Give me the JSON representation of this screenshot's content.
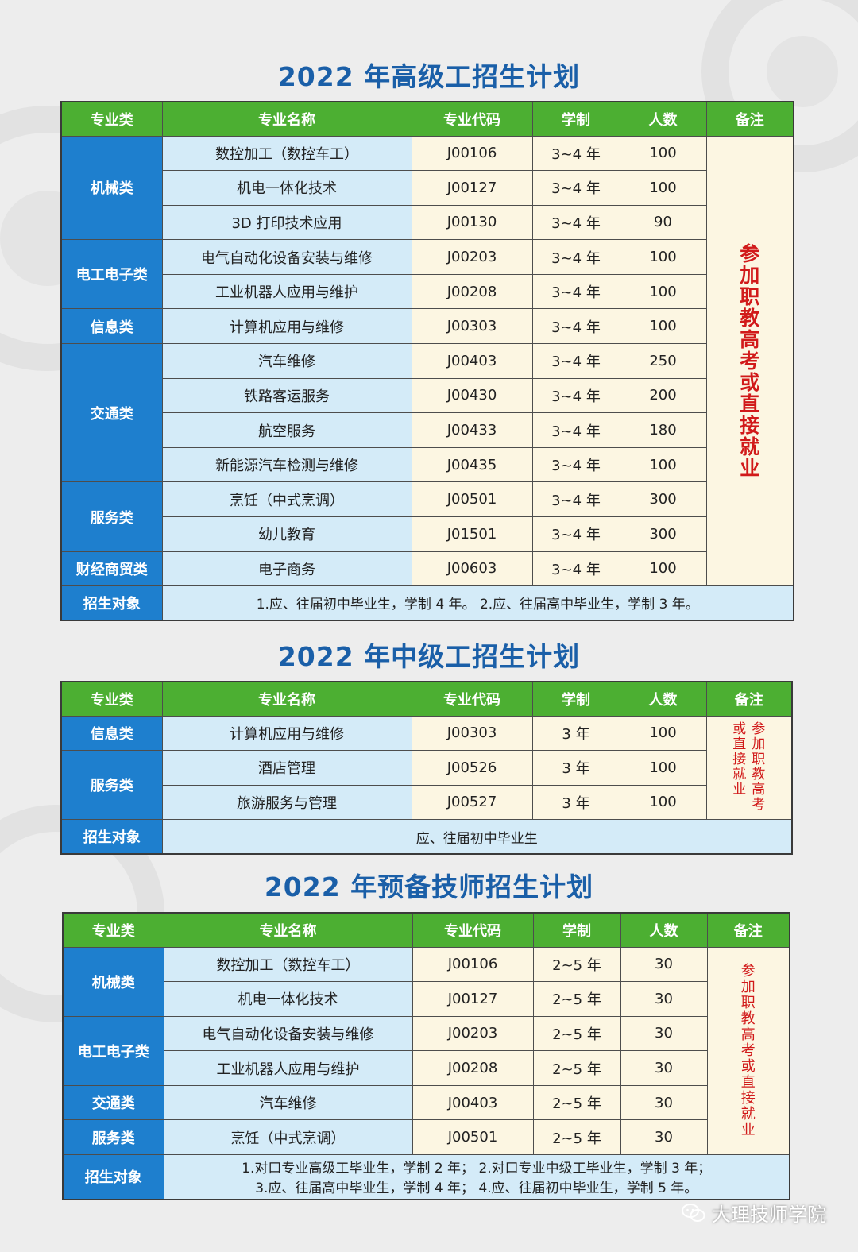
{
  "colors": {
    "header_green": "#4caf32",
    "category_blue": "#1e7fce",
    "title_blue": "#1a5fa8",
    "name_bg": "#d4ebf8",
    "cell_bg": "#fcf6e2",
    "note_red": "#d11a1a"
  },
  "headers": [
    "专业类",
    "专业名称",
    "专业代码",
    "学制",
    "人数",
    "备注"
  ],
  "senior": {
    "title": "2022 年高级工招生计划",
    "rows": [
      {
        "category": "机械类",
        "name": "数控加工（数控车工）",
        "code": "J00106",
        "duration": "3~4 年",
        "count": "100"
      },
      {
        "name": "机电一体化技术",
        "code": "J00127",
        "duration": "3~4 年",
        "count": "100"
      },
      {
        "name": "3D 打印技术应用",
        "code": "J00130",
        "duration": "3~4 年",
        "count": "90"
      },
      {
        "category": "电工电子类",
        "name": "电气自动化设备安装与维修",
        "code": "J00203",
        "duration": "3~4 年",
        "count": "100"
      },
      {
        "name": "工业机器人应用与维护",
        "code": "J00208",
        "duration": "3~4 年",
        "count": "100"
      },
      {
        "category": "信息类",
        "name": "计算机应用与维修",
        "code": "J00303",
        "duration": "3~4 年",
        "count": "100"
      },
      {
        "category": "交通类",
        "name": "汽车维修",
        "code": "J00403",
        "duration": "3~4 年",
        "count": "250"
      },
      {
        "name": "铁路客运服务",
        "code": "J00430",
        "duration": "3~4 年",
        "count": "200"
      },
      {
        "name": "航空服务",
        "code": "J00433",
        "duration": "3~4 年",
        "count": "180"
      },
      {
        "name": "新能源汽车检测与维修",
        "code": "J00435",
        "duration": "3~4 年",
        "count": "100"
      },
      {
        "category": "服务类",
        "name": "烹饪（中式烹调）",
        "code": "J00501",
        "duration": "3~4 年",
        "count": "300"
      },
      {
        "name": "幼儿教育",
        "code": "J01501",
        "duration": "3~4 年",
        "count": "300"
      },
      {
        "category": "财经商贸类",
        "name": "电子商务",
        "code": "J00603",
        "duration": "3~4 年",
        "count": "100"
      }
    ],
    "note": "参加职教高考或直接就业",
    "target_label": "招生对象",
    "target": "1.应、往届初中毕业生，学制 4 年。 2.应、往届高中毕业生，学制 3 年。"
  },
  "middle": {
    "title": "2022 年中级工招生计划",
    "rows": [
      {
        "category": "信息类",
        "name": "计算机应用与维修",
        "code": "J00303",
        "duration": "3 年",
        "count": "100"
      },
      {
        "category": "服务类",
        "name": "酒店管理",
        "code": "J00526",
        "duration": "3 年",
        "count": "100"
      },
      {
        "name": "旅游服务与管理",
        "code": "J00527",
        "duration": "3 年",
        "count": "100"
      }
    ],
    "note_col1": "参加职教高考",
    "note_col2": "或直接就业",
    "target_label": "招生对象",
    "target": "应、往届初中毕业生"
  },
  "technician": {
    "title": "2022 年预备技师招生计划",
    "rows": [
      {
        "category": "机械类",
        "name": "数控加工（数控车工）",
        "code": "J00106",
        "duration": "2~5 年",
        "count": "30"
      },
      {
        "name": "机电一体化技术",
        "code": "J00127",
        "duration": "2~5 年",
        "count": "30"
      },
      {
        "category": "电工电子类",
        "name": "电气自动化设备安装与维修",
        "code": "J00203",
        "duration": "2~5 年",
        "count": "30"
      },
      {
        "name": "工业机器人应用与维护",
        "code": "J00208",
        "duration": "2~5 年",
        "count": "30"
      },
      {
        "category": "交通类",
        "name": "汽车维修",
        "code": "J00403",
        "duration": "2~5 年",
        "count": "30"
      },
      {
        "category": "服务类",
        "name": "烹饪（中式烹调）",
        "code": "J00501",
        "duration": "2~5 年",
        "count": "30"
      }
    ],
    "note": "参加职教高考或直接就业",
    "target_label": "招生对象",
    "target_line1": "1.对口专业高级工毕业生，学制 2 年；  2.对口专业中级工毕业生，学制 3 年；",
    "target_line2": "3.应、往届高中毕业生，学制 4 年；  4.应、往届初中毕业生，学制 5 年。"
  },
  "watermark": {
    "icon": "wechat-icon",
    "text": "大理技师学院"
  }
}
